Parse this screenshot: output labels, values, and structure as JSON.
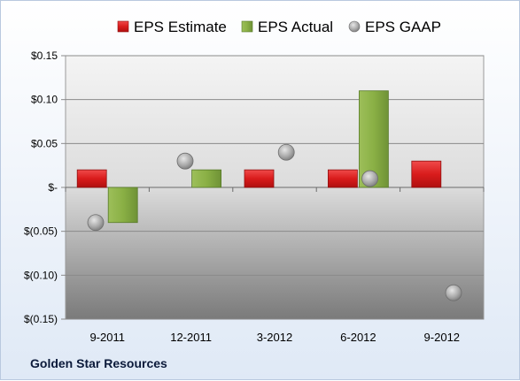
{
  "company": "Golden Star Resources",
  "chart_data": {
    "type": "bar",
    "categories": [
      "9-2011",
      "12-2011",
      "3-2012",
      "6-2012",
      "9-2012"
    ],
    "series": [
      {
        "name": "EPS Estimate",
        "kind": "bar",
        "color": "#e02020",
        "values": [
          0.02,
          null,
          0.02,
          0.02,
          0.03
        ]
      },
      {
        "name": "EPS Actual",
        "kind": "bar",
        "color": "#8db04a",
        "values": [
          -0.04,
          0.02,
          null,
          0.11,
          null
        ]
      },
      {
        "name": "EPS GAAP",
        "kind": "point",
        "color": "#a8a8a8",
        "values": [
          -0.04,
          0.03,
          0.04,
          0.01,
          -0.12
        ]
      }
    ],
    "ylim": [
      -0.15,
      0.15
    ],
    "yticks": [
      0.15,
      0.1,
      0.05,
      0,
      -0.05,
      -0.1,
      -0.15
    ],
    "ytick_labels": [
      "$0.15",
      "$0.10",
      "$0.05",
      "$-",
      "$(0.05)",
      "$(0.10)",
      "$(0.15)"
    ],
    "legend_position": "top",
    "grid": true
  }
}
